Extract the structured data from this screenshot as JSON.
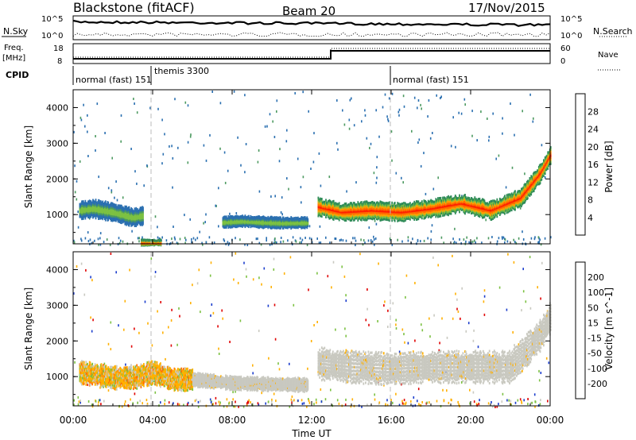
{
  "header": {
    "station": "Blackstone (fitACF)",
    "beam": "Beam 20",
    "date": "17/Nov/2015"
  },
  "top_panels": {
    "nsky": {
      "label": "N.Sky",
      "ticks": [
        "10^5",
        "10^0"
      ]
    },
    "nsearch": {
      "label": "N.Search",
      "ticks": [
        "10^5",
        "10^0"
      ]
    },
    "freq": {
      "label_line1": "Freq.",
      "label_line2": "[MHz]",
      "ticks": [
        "18",
        "8"
      ]
    },
    "nave": {
      "label": "Nave",
      "ticks": [
        "60",
        "0"
      ]
    },
    "cpid": {
      "label": "CPID",
      "segments": [
        {
          "text": "normal (fast) 151",
          "start_hour": 0.0
        },
        {
          "text": "themis 3300",
          "start_hour": 4.0
        },
        {
          "text": "normal (fast) 151",
          "start_hour": 16.0
        }
      ]
    }
  },
  "chart_data": [
    {
      "type": "heatmap",
      "title": "",
      "quantity": "Power",
      "colorbar_label": "Power [dB]",
      "colorbar_ticks": [
        "28",
        "24",
        "20",
        "16",
        "12",
        "8",
        "4"
      ],
      "colorbar_colors": [
        "#0000ff",
        "#2a6fb0",
        "#2e8b57",
        "#4c9a60",
        "#7cc142",
        "#ffd200",
        "#ffa000",
        "#ff6a00",
        "#ff2000"
      ],
      "ylabel": "Slant Range [km]",
      "yticks": [
        "4000",
        "3000",
        "2000",
        "1000"
      ],
      "ylim": [
        180,
        4500
      ],
      "xlim": [
        0,
        24
      ],
      "bands": [
        {
          "x": [
            0.3,
            1.0,
            2.0,
            3.0,
            3.5
          ],
          "y": [
            1150,
            1200,
            1100,
            950,
            1000
          ],
          "width": 200,
          "level": "mid"
        },
        {
          "x": [
            7.5,
            8.5,
            9.5,
            10.5,
            11.8
          ],
          "y": [
            820,
            850,
            820,
            800,
            810
          ],
          "width": 120,
          "level": "mid"
        },
        {
          "x": [
            12.3,
            13.5,
            15,
            16.5,
            18,
            19.5,
            21,
            22.5,
            23.5,
            24.0
          ],
          "y": [
            1250,
            1100,
            1150,
            1100,
            1200,
            1350,
            1150,
            1500,
            2200,
            2700
          ],
          "width": 200,
          "level": "high"
        },
        {
          "x": [
            3.4,
            4.4
          ],
          "y": [
            250,
            250
          ],
          "width": 60,
          "level": "high"
        }
      ]
    },
    {
      "type": "heatmap",
      "title": "",
      "quantity": "Velocity",
      "colorbar_label": "Velocity [m s^-1]",
      "colorbar_ticks": [
        "200",
        "100",
        "50",
        "15",
        "-15",
        "-50",
        "-100",
        "-200"
      ],
      "colorbar_colors": [
        "#1a3ccc",
        "#2e8b57",
        "#7cc142",
        "#c9c9c0",
        "#ffb000",
        "#ff7000",
        "#ff3000",
        "#e00000"
      ],
      "ylabel": "Slant Range [km]",
      "yticks": [
        "4000",
        "3000",
        "2000",
        "1000"
      ],
      "ylim": [
        180,
        4500
      ],
      "xlim": [
        0,
        24
      ],
      "bands": [
        {
          "x": [
            0.3,
            1.0,
            2.0,
            3.0,
            4.0,
            5.0,
            6.0
          ],
          "y": [
            1150,
            1100,
            1000,
            1000,
            1150,
            950,
            950
          ],
          "width": 250,
          "level": "neg"
        },
        {
          "x": [
            6.0,
            8.0,
            10.0,
            11.8
          ],
          "y": [
            950,
            850,
            820,
            800
          ],
          "width": 150,
          "level": "zero"
        },
        {
          "x": [
            12.3,
            14.0,
            16.0,
            18.0,
            20.0,
            22.0,
            23.5,
            24.0
          ],
          "y": [
            1400,
            1300,
            1250,
            1300,
            1300,
            1300,
            2200,
            2700
          ],
          "width": 350,
          "level": "zero"
        }
      ]
    }
  ],
  "xaxis": {
    "ticks": [
      "00:00",
      "04:00",
      "08:00",
      "12:00",
      "16:00",
      "20:00",
      "00:00"
    ],
    "label": "Time UT"
  }
}
